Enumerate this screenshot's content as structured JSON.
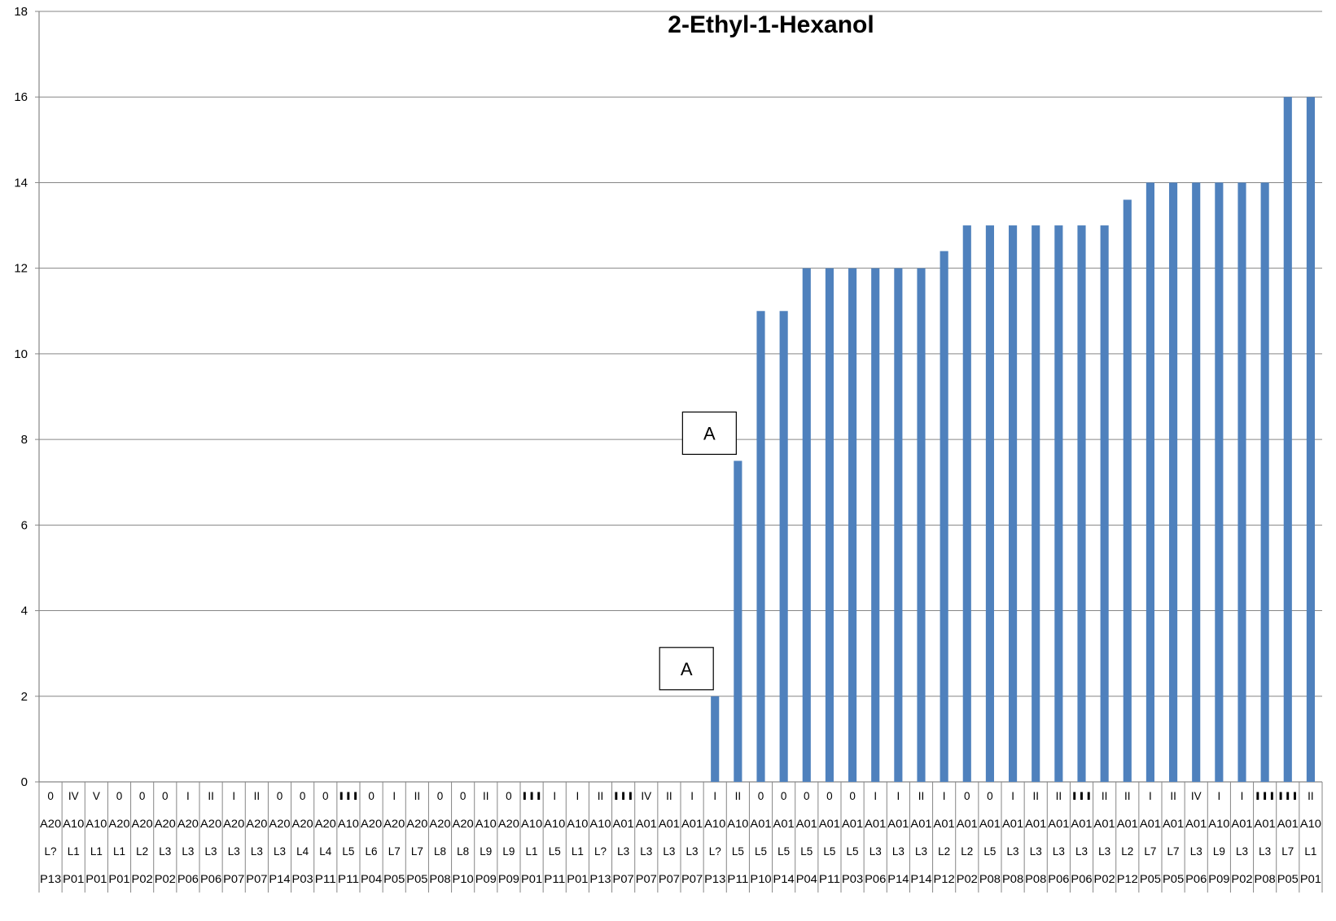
{
  "chart_data": {
    "type": "bar",
    "title": "2-Ethyl-1-Hexanol",
    "xlabel": "",
    "ylabel": "",
    "ylim": [
      0,
      18
    ],
    "yticks": [
      0,
      2,
      4,
      6,
      8,
      10,
      12,
      14,
      16,
      18
    ],
    "grid": true,
    "legend": "none",
    "bar_color": "#4f81bd",
    "category_levels": [
      [
        "0",
        "IV",
        "V",
        "0",
        "0",
        "0",
        "I",
        "II",
        "I",
        "II",
        "0",
        "0",
        "0",
        "III",
        "0",
        "I",
        "II",
        "0",
        "0",
        "II",
        "0",
        "III",
        "I",
        "I",
        "II",
        "III",
        "IV",
        "II",
        "I",
        "I",
        "II",
        "0",
        "0",
        "0",
        "0",
        "0",
        "I",
        "I",
        "II",
        "I",
        "0",
        "0",
        "I",
        "II",
        "II",
        "III",
        "II",
        "II",
        "I",
        "II",
        "IV",
        "I",
        "I",
        "III",
        "III",
        "II"
      ],
      [
        "A20",
        "A10",
        "A10",
        "A20",
        "A20",
        "A20",
        "A20",
        "A20",
        "A20",
        "A20",
        "A20",
        "A20",
        "A20",
        "A10",
        "A20",
        "A20",
        "A20",
        "A20",
        "A20",
        "A10",
        "A20",
        "A10",
        "A10",
        "A10",
        "A10",
        "A01",
        "A01",
        "A01",
        "A01",
        "A10",
        "A10",
        "A01",
        "A01",
        "A01",
        "A01",
        "A01",
        "A01",
        "A01",
        "A01",
        "A01",
        "A01",
        "A01",
        "A01",
        "A01",
        "A01",
        "A01",
        "A01",
        "A01",
        "A01",
        "A01",
        "A01",
        "A10",
        "A01",
        "A01",
        "A01",
        "A10"
      ],
      [
        "L?",
        "L1",
        "L1",
        "L1",
        "L2",
        "L3",
        "L3",
        "L3",
        "L3",
        "L3",
        "L3",
        "L4",
        "L4",
        "L5",
        "L6",
        "L7",
        "L7",
        "L8",
        "L8",
        "L9",
        "L9",
        "L1",
        "L5",
        "L1",
        "L?",
        "L3",
        "L3",
        "L3",
        "L3",
        "L?",
        "L5",
        "L5",
        "L5",
        "L5",
        "L5",
        "L5",
        "L3",
        "L3",
        "L3",
        "L2",
        "L2",
        "L5",
        "L3",
        "L3",
        "L3",
        "L3",
        "L3",
        "L2",
        "L7",
        "L7",
        "L3",
        "L9",
        "L3",
        "L3",
        "L7",
        "L1"
      ],
      [
        "P13",
        "P01",
        "P01",
        "P01",
        "P02",
        "P02",
        "P06",
        "P06",
        "P07",
        "P07",
        "P14",
        "P03",
        "P11",
        "P11",
        "P04",
        "P05",
        "P05",
        "P08",
        "P10",
        "P09",
        "P09",
        "P01",
        "P11",
        "P01",
        "P13",
        "P07",
        "P07",
        "P07",
        "P07",
        "P13",
        "P11",
        "P10",
        "P14",
        "P04",
        "P11",
        "P03",
        "P06",
        "P14",
        "P14",
        "P12",
        "P02",
        "P08",
        "P08",
        "P08",
        "P06",
        "P06",
        "P02",
        "P12",
        "P05",
        "P05",
        "P06",
        "P09",
        "P02",
        "P08",
        "P05",
        "P01"
      ]
    ],
    "values": [
      0,
      0,
      0,
      0,
      0,
      0,
      0,
      0,
      0,
      0,
      0,
      0,
      0,
      0,
      0,
      0,
      0,
      0,
      0,
      0,
      0,
      0,
      0,
      0,
      0,
      0,
      0,
      0,
      0,
      2,
      7.5,
      11,
      11,
      12,
      12,
      12,
      12,
      12,
      12,
      12.4,
      13,
      13,
      13,
      13,
      13,
      13,
      13,
      13.6,
      14,
      14,
      14,
      14,
      14,
      14,
      16,
      16
    ],
    "annotations": [
      {
        "text": "A",
        "category_index": 29
      },
      {
        "text": "A",
        "category_index": 30
      }
    ]
  }
}
